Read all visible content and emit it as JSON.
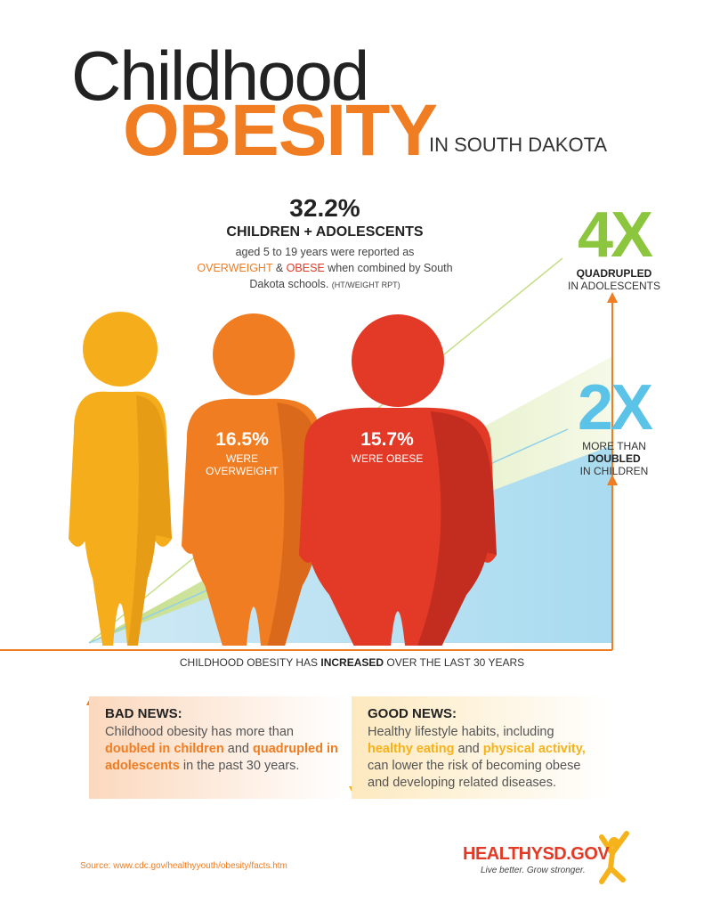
{
  "header": {
    "title_line1": "Childhood",
    "title_line2": "OBESITY",
    "title_suffix": "IN SOUTH DAKOTA"
  },
  "stat": {
    "value": "32.2%",
    "heading": "CHILDREN + ADOLESCENTS",
    "text_1": "aged 5 to 19 years were reported as",
    "overweight": "OVERWEIGHT",
    "amp": "&",
    "obese": "OBESE",
    "text_2": "when combined by South Dakota schools.",
    "note": "(HT/WEIGHT RPT)"
  },
  "figures": [
    {
      "value": "16.5%",
      "label": "WERE OVERWEIGHT"
    },
    {
      "value": "15.7%",
      "label": "WERE OBESE"
    }
  ],
  "growth": [
    {
      "value": "4X",
      "label": "QUADRUPLED",
      "sub": "IN ADOLESCENTS"
    },
    {
      "value": "2X",
      "pre": "MORE THAN",
      "label": "DOUBLED",
      "sub": "IN CHILDREN"
    }
  ],
  "caption": {
    "text_1": "CHILDHOOD OBESITY HAS",
    "emphasis": "INCREASED",
    "text_2": "OVER THE LAST 30 YEARS"
  },
  "bad_news": {
    "title": "BAD NEWS:",
    "text_1": "Childhood obesity has more than",
    "em_1": "doubled in children",
    "text_2": "and",
    "em_2": "quadrupled in adolescents",
    "text_3": "in the past 30 years."
  },
  "good_news": {
    "title": "GOOD NEWS:",
    "text_1": "Healthy lifestyle habits, including",
    "em_1": "healthy eating",
    "text_2": "and",
    "em_2": "physical activity,",
    "text_3": "can lower the risk of becoming obese and developing related diseases."
  },
  "footer": {
    "source": "Source: www.cdc.gov/healthyyouth/obesity/facts.htm",
    "logo": "HEALTHYSD.GOV",
    "tagline": "Live better. Grow stronger."
  }
}
